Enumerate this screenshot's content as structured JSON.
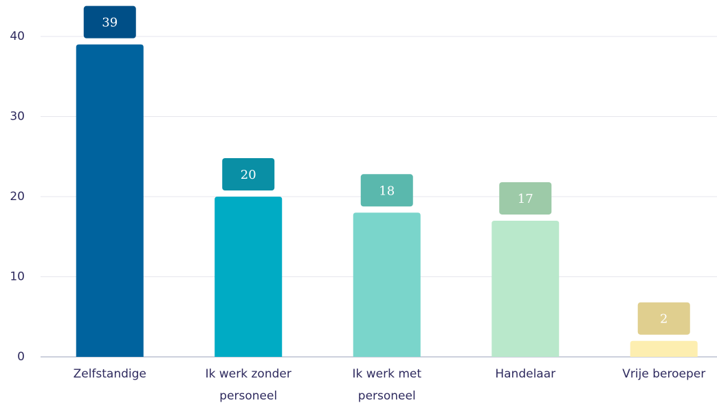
{
  "chart_data": {
    "type": "bar",
    "categories": [
      "Zelfstandige",
      "Ik werk zonder personeel",
      "Ik werk met personeel",
      "Handelaar",
      "Vrije beroeper"
    ],
    "values": [
      39,
      20,
      18,
      17,
      2
    ],
    "colors": [
      "#00639e",
      "#00abc4",
      "#7ad5cb",
      "#b9e8cb",
      "#fdeeb0"
    ],
    "label_colors": [
      "#004f87",
      "#0a8fa5",
      "#5ab8ad",
      "#9dcaa8",
      "#e0cf8f"
    ],
    "ylim": [
      0,
      40
    ],
    "yticks": [
      0,
      10,
      20,
      30,
      40
    ],
    "grid": true
  }
}
